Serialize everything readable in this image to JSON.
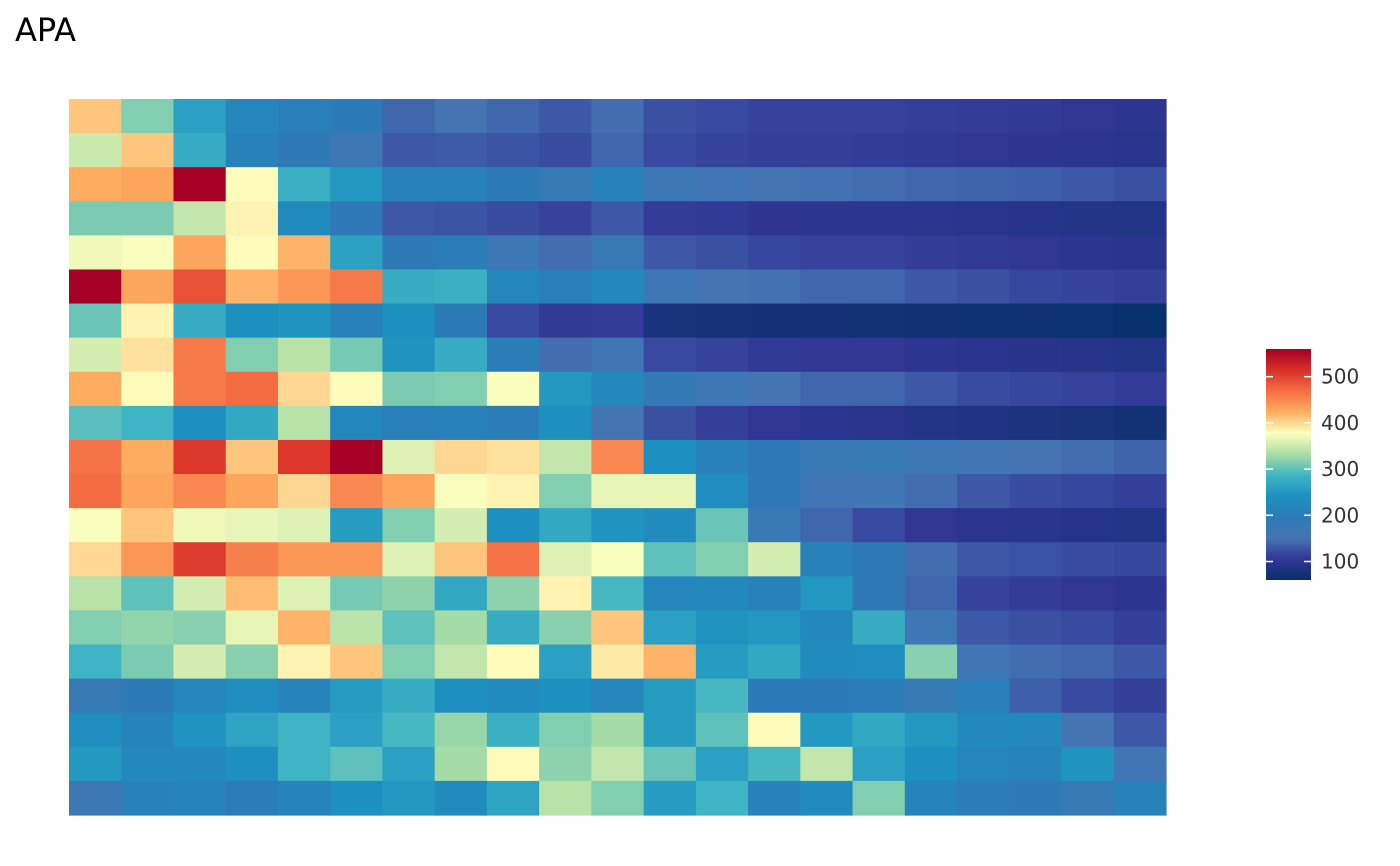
{
  "chart_data": {
    "type": "heatmap",
    "title": "APA",
    "xlabel": "",
    "ylabel": "",
    "rows": 21,
    "cols": 21,
    "values": [
      [
        410,
        315,
        260,
        220,
        205,
        195,
        140,
        150,
        140,
        130,
        145,
        125,
        120,
        115,
        115,
        115,
        112,
        110,
        108,
        105,
        100
      ],
      [
        350,
        410,
        275,
        210,
        190,
        165,
        130,
        132,
        128,
        122,
        140,
        120,
        115,
        112,
        112,
        110,
        108,
        104,
        102,
        100,
        96
      ],
      [
        425,
        430,
        560,
        380,
        280,
        250,
        210,
        208,
        195,
        180,
        210,
        170,
        160,
        150,
        148,
        145,
        140,
        138,
        135,
        130,
        125
      ],
      [
        312,
        312,
        345,
        385,
        230,
        190,
        130,
        128,
        122,
        115,
        130,
        110,
        108,
        102,
        100,
        100,
        98,
        95,
        92,
        90,
        88
      ],
      [
        370,
        375,
        430,
        380,
        420,
        262,
        190,
        200,
        170,
        145,
        175,
        130,
        125,
        118,
        115,
        115,
        110,
        108,
        104,
        100,
        96
      ],
      [
        560,
        430,
        490,
        420,
        440,
        460,
        275,
        280,
        222,
        205,
        225,
        165,
        150,
        148,
        140,
        140,
        130,
        125,
        118,
        115,
        112
      ],
      [
        305,
        385,
        275,
        240,
        245,
        210,
        240,
        195,
        120,
        108,
        110,
        80,
        76,
        74,
        74,
        72,
        70,
        68,
        66,
        64,
        60
      ],
      [
        355,
        395,
        460,
        315,
        340,
        310,
        245,
        275,
        200,
        145,
        160,
        120,
        115,
        108,
        104,
        104,
        100,
        96,
        94,
        92,
        88
      ],
      [
        425,
        380,
        460,
        470,
        400,
        380,
        312,
        315,
        375,
        250,
        225,
        185,
        165,
        150,
        140,
        140,
        130,
        122,
        118,
        115,
        110
      ],
      [
        298,
        285,
        240,
        270,
        340,
        222,
        205,
        210,
        200,
        240,
        150,
        125,
        112,
        105,
        98,
        95,
        90,
        85,
        82,
        78,
        72
      ],
      [
        465,
        425,
        510,
        410,
        510,
        560,
        360,
        400,
        395,
        345,
        450,
        240,
        210,
        190,
        175,
        180,
        170,
        158,
        150,
        145,
        138
      ],
      [
        470,
        430,
        450,
        430,
        400,
        450,
        430,
        375,
        385,
        315,
        365,
        365,
        235,
        190,
        160,
        160,
        145,
        130,
        122,
        118,
        112
      ],
      [
        375,
        410,
        370,
        365,
        360,
        255,
        315,
        355,
        240,
        270,
        245,
        230,
        305,
        175,
        140,
        120,
        105,
        98,
        95,
        92,
        88
      ],
      [
        400,
        440,
        505,
        455,
        440,
        440,
        360,
        410,
        465,
        360,
        375,
        300,
        315,
        355,
        210,
        190,
        145,
        130,
        126,
        122,
        118
      ],
      [
        340,
        300,
        355,
        415,
        360,
        310,
        320,
        270,
        320,
        385,
        290,
        220,
        225,
        210,
        250,
        190,
        140,
        115,
        110,
        105,
        100
      ],
      [
        315,
        322,
        318,
        365,
        420,
        342,
        300,
        330,
        275,
        318,
        410,
        260,
        245,
        250,
        225,
        275,
        165,
        130,
        125,
        120,
        112
      ],
      [
        285,
        312,
        355,
        318,
        385,
        410,
        315,
        345,
        380,
        260,
        390,
        420,
        255,
        270,
        230,
        235,
        318,
        160,
        145,
        140,
        130
      ],
      [
        180,
        195,
        220,
        235,
        215,
        255,
        275,
        240,
        230,
        240,
        220,
        255,
        290,
        195,
        195,
        200,
        180,
        205,
        135,
        120,
        112
      ],
      [
        235,
        215,
        245,
        265,
        285,
        260,
        290,
        325,
        280,
        315,
        330,
        255,
        300,
        380,
        250,
        270,
        250,
        225,
        225,
        150,
        130
      ],
      [
        250,
        225,
        225,
        240,
        285,
        300,
        260,
        330,
        380,
        320,
        345,
        305,
        260,
        290,
        345,
        260,
        240,
        220,
        215,
        245,
        160
      ],
      [
        170,
        210,
        215,
        200,
        215,
        240,
        250,
        230,
        265,
        340,
        315,
        255,
        285,
        210,
        230,
        315,
        215,
        200,
        190,
        180,
        210
      ]
    ],
    "colorbar": {
      "min": 60,
      "max": 560,
      "ticks": [
        "100",
        "200",
        "300",
        "400",
        "500"
      ],
      "tick_values": [
        100,
        200,
        300,
        400,
        500
      ]
    },
    "colormap": [
      "#08306b",
      "#313695",
      "#4575b4",
      "#2c7bb6",
      "#1d91c0",
      "#41b6c4",
      "#abdda4",
      "#ffffbf",
      "#fdae61",
      "#f46d43",
      "#d73027",
      "#a50026"
    ]
  }
}
